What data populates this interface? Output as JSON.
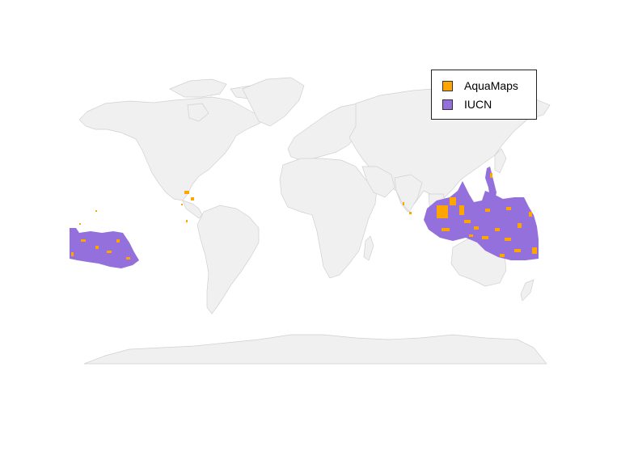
{
  "map": {
    "legend": {
      "items": [
        {
          "label": "AquaMaps",
          "color": "#FFA500"
        },
        {
          "label": "IUCN",
          "color": "#9370DB"
        }
      ]
    },
    "colors": {
      "land": "#f0f0f0",
      "border": "#d0d0d0",
      "aquamaps": "#FFA500",
      "iucn": "#9370DB"
    }
  }
}
